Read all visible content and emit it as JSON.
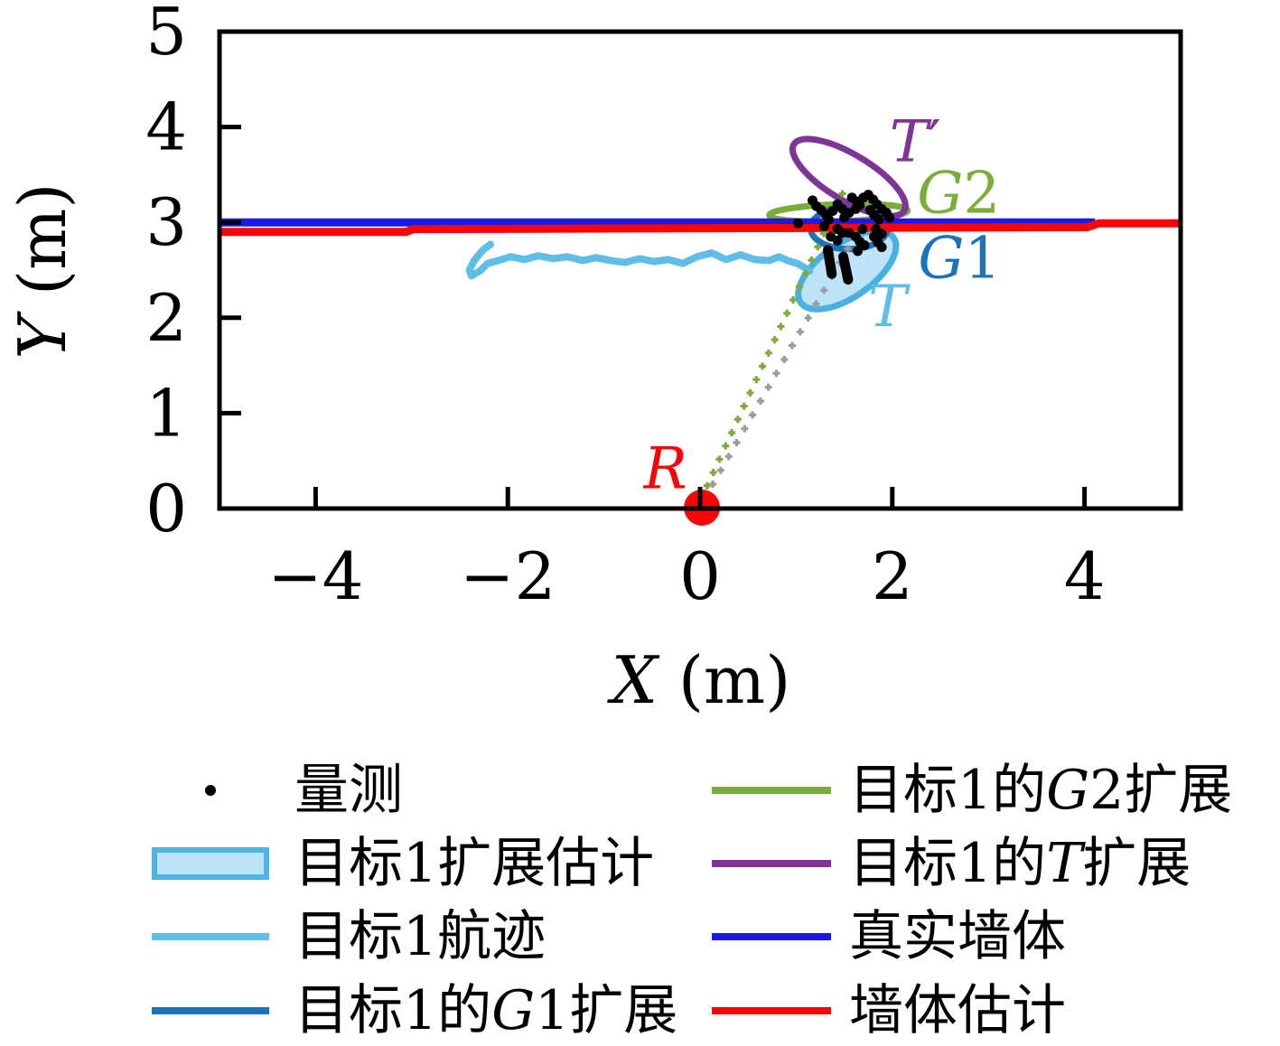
{
  "figure": {
    "background": "#FFFFFF",
    "axis_color": "#000000"
  },
  "chart_data": {
    "type": "line",
    "title": "",
    "xlabel_parts": [
      {
        "t": "X",
        "i": true
      },
      {
        "t": " (m)"
      }
    ],
    "ylabel_parts": [
      {
        "t": "Y",
        "i": true
      },
      {
        "t": " (m)"
      }
    ],
    "xlim": [
      -5,
      5
    ],
    "ylim": [
      0,
      5
    ],
    "x_ticks": [
      {
        "v": -4,
        "label": "−4"
      },
      {
        "v": -2,
        "label": "−2"
      },
      {
        "v": 0,
        "label": "0"
      },
      {
        "v": 2,
        "label": "2"
      },
      {
        "v": 4,
        "label": "4"
      }
    ],
    "y_ticks": [
      {
        "v": 0,
        "label": "0"
      },
      {
        "v": 1,
        "label": "1"
      },
      {
        "v": 2,
        "label": "2"
      },
      {
        "v": 3,
        "label": "3"
      },
      {
        "v": 4,
        "label": "4"
      },
      {
        "v": 5,
        "label": "5"
      }
    ],
    "grid": false,
    "series": [
      {
        "name": "目标1航迹",
        "color": "#5FBEE8",
        "width": 8,
        "points": [
          [
            -2.18,
            2.77
          ],
          [
            -2.26,
            2.71
          ],
          [
            -2.35,
            2.6
          ],
          [
            -2.4,
            2.5
          ],
          [
            -2.38,
            2.44
          ],
          [
            -2.29,
            2.49
          ],
          [
            -2.21,
            2.57
          ],
          [
            -2.1,
            2.6
          ],
          [
            -1.97,
            2.64
          ],
          [
            -1.83,
            2.61
          ],
          [
            -1.68,
            2.65
          ],
          [
            -1.53,
            2.62
          ],
          [
            -1.38,
            2.64
          ],
          [
            -1.22,
            2.6
          ],
          [
            -1.08,
            2.63
          ],
          [
            -0.93,
            2.6
          ],
          [
            -0.78,
            2.58
          ],
          [
            -0.63,
            2.62
          ],
          [
            -0.48,
            2.59
          ],
          [
            -0.33,
            2.61
          ],
          [
            -0.18,
            2.57
          ],
          [
            -0.03,
            2.64
          ],
          [
            0.12,
            2.68
          ],
          [
            0.27,
            2.61
          ],
          [
            0.42,
            2.66
          ],
          [
            0.57,
            2.61
          ],
          [
            0.72,
            2.6
          ],
          [
            0.82,
            2.64
          ],
          [
            0.91,
            2.6
          ],
          [
            1.01,
            2.57
          ],
          [
            1.08,
            2.53
          ],
          [
            1.14,
            2.49
          ]
        ]
      },
      {
        "name": "真实墙体",
        "color": "#1A1AE8",
        "width": 9,
        "points": [
          [
            -5,
            3.0
          ],
          [
            4.11,
            3.0
          ]
        ]
      },
      {
        "name": "墙体估计",
        "color": "#F90508",
        "width": 9,
        "points": [
          [
            -5,
            2.9
          ],
          [
            -3.06,
            2.9
          ],
          [
            -2.98,
            2.93
          ],
          [
            4.03,
            2.95
          ],
          [
            4.15,
            2.99
          ],
          [
            5,
            2.99
          ]
        ]
      }
    ],
    "los_lines": [
      {
        "color": "#7CAD3A",
        "from": [
          0.01,
          0.1
        ],
        "to": [
          1.48,
          3.3
        ],
        "markers": 24
      },
      {
        "color": "#9C9C9C",
        "from": [
          0.05,
          0.11
        ],
        "to": [
          1.62,
          2.87
        ],
        "markers": 20
      }
    ],
    "ellipses": [
      {
        "name": "t-extension",
        "cx": 1.53,
        "cy": 2.5,
        "rx": 0.59,
        "ry": 0.28,
        "rot": -35,
        "stroke": "#49B0E2",
        "fill": "#BCE4F6",
        "lw": 7
      },
      {
        "name": "g2-extension",
        "cx": 1.44,
        "cy": 3.1,
        "rx": 0.72,
        "ry": 0.09,
        "rot": -2,
        "stroke": "#7CAD3A",
        "fill": "none",
        "lw": 7
      },
      {
        "name": "g1-extension",
        "cx": 1.55,
        "cy": 2.94,
        "rx": 0.4,
        "ry": 0.22,
        "rot": 0,
        "stroke": "#1B74B8",
        "fill": "none",
        "lw": 7
      },
      {
        "name": "t-prime-extension",
        "cx": 1.55,
        "cy": 3.47,
        "rx": 0.67,
        "ry": 0.24,
        "rot": 31,
        "stroke": "#7E3596",
        "fill": "none",
        "lw": 7
      }
    ],
    "measurements": {
      "color": "#000000",
      "points": [
        [
          1.17,
          3.23
        ],
        [
          1.21,
          3.17
        ],
        [
          1.26,
          3.13
        ],
        [
          1.31,
          3.08
        ],
        [
          1.34,
          3.03
        ],
        [
          1.43,
          3.19
        ],
        [
          1.48,
          3.14
        ],
        [
          1.38,
          3.12
        ],
        [
          1.58,
          3.26
        ],
        [
          1.63,
          3.22
        ],
        [
          1.66,
          3.18
        ],
        [
          1.62,
          3.14
        ],
        [
          1.7,
          3.26
        ],
        [
          1.75,
          3.29
        ],
        [
          1.8,
          3.24
        ],
        [
          1.84,
          3.19
        ],
        [
          1.89,
          3.14
        ],
        [
          1.94,
          3.1
        ],
        [
          1.97,
          3.05
        ],
        [
          1.77,
          3.13
        ],
        [
          1.81,
          3.08
        ],
        [
          1.86,
          3.03
        ],
        [
          1.55,
          3.1
        ],
        [
          1.5,
          3.05
        ],
        [
          1.43,
          2.93
        ],
        [
          1.48,
          2.89
        ],
        [
          1.69,
          2.93
        ],
        [
          1.83,
          2.93
        ],
        [
          1.89,
          2.88
        ],
        [
          1.36,
          2.85
        ],
        [
          1.43,
          2.81
        ],
        [
          1.62,
          2.85
        ],
        [
          1.66,
          2.8
        ],
        [
          1.71,
          2.76
        ],
        [
          1.64,
          2.7
        ],
        [
          1.81,
          2.85
        ],
        [
          1.85,
          2.79
        ],
        [
          1.89,
          2.74
        ],
        [
          1.55,
          2.89
        ],
        [
          1.29,
          2.96
        ],
        [
          1.02,
          2.99
        ]
      ],
      "streaks": [
        [
          1.33,
          2.71,
          1.37,
          2.46
        ],
        [
          1.49,
          2.64,
          1.54,
          2.4
        ]
      ]
    },
    "radar": {
      "x": 0.02,
      "y": 0.01,
      "radius_px": 20,
      "color": "#F90508"
    },
    "annotations": [
      {
        "id": "t-prime",
        "parts": [
          {
            "t": "T",
            "i": true
          },
          {
            "t": "′"
          }
        ],
        "x": 2.24,
        "y": 3.85,
        "color": "#7E3596"
      },
      {
        "id": "g2",
        "parts": [
          {
            "t": "G",
            "i": true
          },
          {
            "t": "2"
          }
        ],
        "x": 2.69,
        "y": 3.31,
        "color": "#7CAD3A"
      },
      {
        "id": "g1",
        "parts": [
          {
            "t": "G",
            "i": true
          },
          {
            "t": "1"
          }
        ],
        "x": 2.7,
        "y": 2.63,
        "color": "#1B74B8"
      },
      {
        "id": "t",
        "parts": [
          {
            "t": "T",
            "i": true
          }
        ],
        "x": 1.95,
        "y": 2.12,
        "color": "#5FBEE8"
      },
      {
        "id": "r",
        "parts": [
          {
            "t": "R",
            "i": true
          }
        ],
        "x": -0.36,
        "y": 0.42,
        "color": "#F90508"
      }
    ]
  },
  "legend": {
    "columns": [
      {
        "id": "left",
        "items": [
          {
            "marker": "dot",
            "color": "#000000",
            "label_parts": [
              {
                "t": "量测"
              }
            ]
          },
          {
            "marker": "rect",
            "fill": "#BCE4F6",
            "border": "#4FB3E3",
            "label_parts": [
              {
                "t": "目标1扩展估计"
              }
            ]
          },
          {
            "marker": "line",
            "color": "#5FBEE8",
            "label_parts": [
              {
                "t": "目标1航迹"
              }
            ]
          },
          {
            "marker": "line",
            "color": "#1B74B8",
            "label_parts": [
              {
                "t": "目标1的"
              },
              {
                "t": "G",
                "i": true
              },
              {
                "t": "1扩展"
              }
            ]
          }
        ]
      },
      {
        "id": "right",
        "items": [
          {
            "marker": "line",
            "color": "#7CAD3A",
            "label_parts": [
              {
                "t": "目标1的"
              },
              {
                "t": "G",
                "i": true
              },
              {
                "t": "2扩展"
              }
            ]
          },
          {
            "marker": "line",
            "color": "#7E3596",
            "label_parts": [
              {
                "t": "目标1的"
              },
              {
                "t": "T",
                "i": true
              },
              {
                "t": "扩展"
              }
            ]
          },
          {
            "marker": "line",
            "color": "#1A1AE8",
            "label_parts": [
              {
                "t": "真实墙体"
              }
            ]
          },
          {
            "marker": "line",
            "color": "#F90508",
            "label_parts": [
              {
                "t": "墙体估计"
              }
            ]
          }
        ]
      }
    ]
  }
}
